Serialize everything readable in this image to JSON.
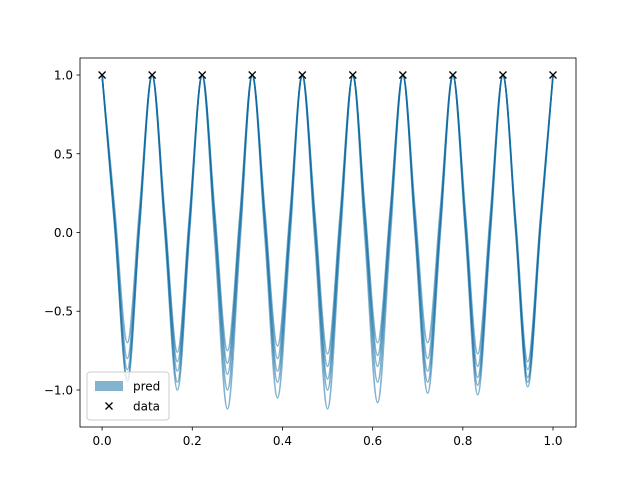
{
  "chart_data": {
    "type": "line",
    "x": [
      0,
      0.028,
      0.056,
      0.083,
      0.111,
      0.139,
      0.167,
      0.194,
      0.222,
      0.25,
      0.278,
      0.306,
      0.333,
      0.361,
      0.389,
      0.417,
      0.444,
      0.472,
      0.5,
      0.528,
      0.556,
      0.583,
      0.611,
      0.639,
      0.667,
      0.694,
      0.722,
      0.75,
      0.778,
      0.806,
      0.833,
      0.861,
      0.889,
      0.917,
      0.944,
      0.972,
      1
    ],
    "series": [
      {
        "name": "pred",
        "color": "#0868a0",
        "samples": [
          [
            1,
            0.15,
            -0.7,
            0.15,
            1,
            0.12,
            -0.76,
            0.12,
            1,
            0.13,
            -0.75,
            0.13,
            1,
            0.14,
            -0.72,
            0.14,
            1,
            0.12,
            -0.77,
            0.12,
            1,
            0.15,
            -0.7,
            0.15,
            1,
            0.15,
            -0.7,
            0.15,
            1,
            0.12,
            -0.77,
            0.12,
            1,
            0.09,
            -0.82,
            0.09,
            1
          ],
          [
            1,
            0.1,
            -0.8,
            0.1,
            1,
            0.09,
            -0.82,
            0.09,
            1,
            0.09,
            -0.83,
            0.09,
            1,
            0.1,
            -0.8,
            0.1,
            1,
            0.08,
            -0.85,
            0.08,
            1,
            0.11,
            -0.78,
            0.11,
            1,
            0.1,
            -0.8,
            0.1,
            1,
            0.08,
            -0.85,
            0.08,
            1,
            0.07,
            -0.87,
            0.07,
            1
          ],
          [
            1,
            0.07,
            -0.87,
            0.07,
            1,
            0.06,
            -0.88,
            0.06,
            1,
            0.05,
            -0.9,
            0.05,
            1,
            0.06,
            -0.88,
            0.06,
            1,
            0.04,
            -0.93,
            0.04,
            1,
            0.08,
            -0.85,
            0.08,
            1,
            0.06,
            -0.88,
            0.06,
            1,
            0.04,
            -0.92,
            0.04,
            1,
            0.04,
            -0.92,
            0.04,
            1
          ],
          [
            1,
            0.04,
            -0.93,
            0.04,
            1,
            0.03,
            -0.95,
            0.03,
            1,
            0,
            -1.0,
            0,
            1,
            0.03,
            -0.95,
            0.03,
            1,
            0,
            -1.0,
            0,
            1,
            0.03,
            -0.95,
            0.03,
            1,
            0.03,
            -0.95,
            0.03,
            1,
            0.02,
            -0.97,
            0.02,
            1,
            0.03,
            -0.95,
            0.03,
            1
          ],
          [
            1,
            0.03,
            -0.95,
            0.03,
            1,
            0,
            -1.0,
            0,
            1,
            -0.06,
            -1.12,
            -0.06,
            1,
            -0.03,
            -1.05,
            -0.03,
            1,
            -0.06,
            -1.12,
            -0.06,
            1,
            -0.04,
            -1.08,
            -0.04,
            1,
            -0.01,
            -1.02,
            -0.01,
            1,
            -0.02,
            -1.03,
            -0.02,
            1,
            0.01,
            -0.98,
            0.01,
            1
          ]
        ]
      },
      {
        "name": "data",
        "color": "#000000",
        "type": "scatter",
        "x": [
          0,
          0.111,
          0.222,
          0.333,
          0.444,
          0.556,
          0.667,
          0.778,
          0.889,
          1
        ],
        "values": [
          1,
          1,
          1,
          1,
          1,
          1,
          1,
          1,
          1,
          1
        ]
      }
    ],
    "xlim": [
      -0.049,
      1.051
    ],
    "ylim": [
      -1.235,
      1.108
    ],
    "xticks": [
      {
        "value": 0,
        "label": "0.0"
      },
      0.2,
      0.4,
      0.6,
      0.8,
      {
        "value": 1,
        "label": "1.0"
      }
    ],
    "yticks": [
      {
        "value": -1,
        "label": "−1.0"
      },
      {
        "value": -0.5,
        "label": "−0.5"
      },
      {
        "value": 0,
        "label": "0.0"
      },
      0.5,
      {
        "value": 1,
        "label": "1.0"
      }
    ],
    "legend": "lower left"
  }
}
